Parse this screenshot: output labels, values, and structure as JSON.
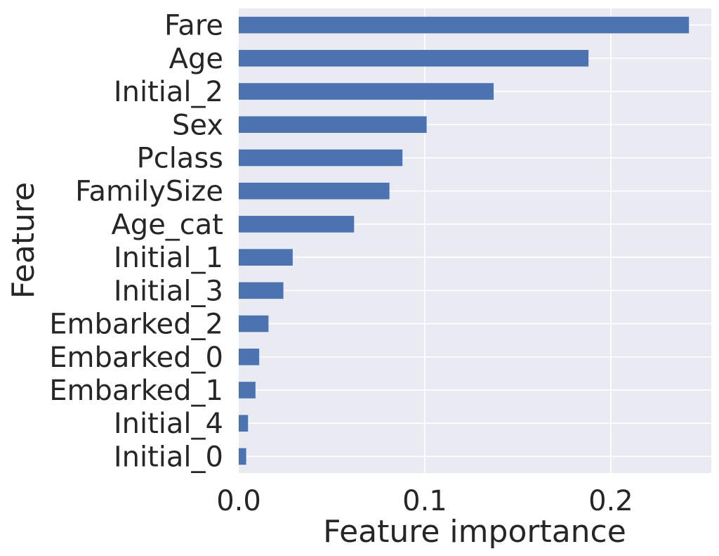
{
  "chart_data": {
    "type": "bar",
    "orientation": "horizontal",
    "title": "",
    "xlabel": "Feature importance",
    "ylabel": "Feature",
    "categories": [
      "Fare",
      "Age",
      "Initial_2",
      "Sex",
      "Pclass",
      "FamilySize",
      "Age_cat",
      "Initial_1",
      "Initial_3",
      "Embarked_2",
      "Embarked_0",
      "Embarked_1",
      "Initial_4",
      "Initial_0"
    ],
    "values": [
      0.242,
      0.188,
      0.137,
      0.101,
      0.088,
      0.081,
      0.062,
      0.029,
      0.024,
      0.016,
      0.011,
      0.009,
      0.005,
      0.004
    ],
    "xlim": [
      0,
      0.254
    ],
    "xticks": [
      0.0,
      0.1,
      0.2
    ],
    "xtick_labels": [
      "0.0",
      "0.1",
      "0.2"
    ],
    "grid": true,
    "legend": "none",
    "colors": {
      "bar": "#4c72b0",
      "plot_background": "#eaeaf2",
      "grid": "#ffffff",
      "text": "#262626"
    }
  }
}
